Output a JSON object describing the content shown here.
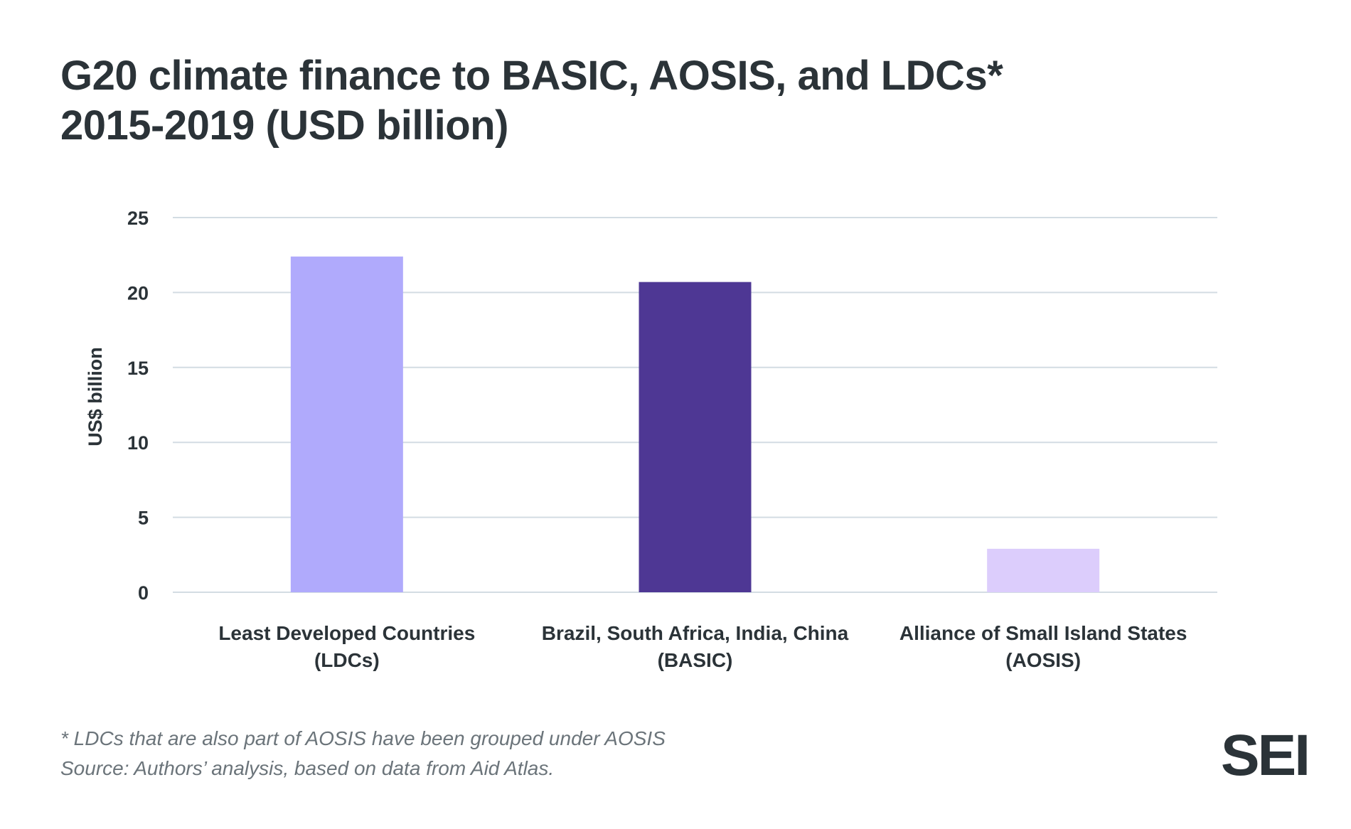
{
  "chart_data": {
    "type": "bar",
    "title_lines": [
      "G20 climate finance to BASIC, AOSIS, and LDCs*",
      "2015-2019 (USD billion)"
    ],
    "ylabel": "US$ billion",
    "ylim": [
      0,
      25
    ],
    "yticks": [
      0,
      5,
      10,
      15,
      20,
      25
    ],
    "grid": true,
    "categories": [
      [
        "Least Developed Countries",
        "(LDCs)"
      ],
      [
        "Brazil, South Africa, India, China",
        "(BASIC)"
      ],
      [
        "Alliance of Small Island States",
        "(AOSIS)"
      ]
    ],
    "values": [
      22.4,
      20.7,
      2.9
    ],
    "colors": [
      "#b0aafc",
      "#4e3794",
      "#dccdfc"
    ]
  },
  "footnotes": [
    "* LDCs that are also part of AOSIS have been grouped under AOSIS",
    "Source: Authors’ analysis, based on data from Aid Atlas."
  ],
  "logo": {
    "text": "SEI"
  },
  "colors": {
    "grid": "#d3dce3",
    "text": "#2b3338",
    "footnote": "#6b747a"
  }
}
